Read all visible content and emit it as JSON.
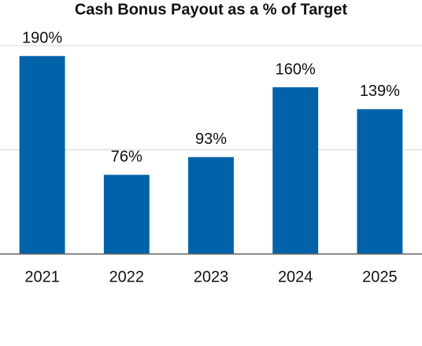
{
  "chart_data": {
    "type": "bar",
    "title": "Cash Bonus Payout as a % of Target",
    "categories": [
      "2021",
      "2022",
      "2023",
      "2024",
      "2025"
    ],
    "values": [
      190,
      76,
      93,
      160,
      139
    ],
    "value_labels": [
      "190%",
      "76%",
      "93%",
      "160%",
      "139%"
    ],
    "color": "#0062a8",
    "ylim": [
      0,
      200
    ],
    "yticks": [
      0,
      100,
      200
    ],
    "grid": true
  }
}
